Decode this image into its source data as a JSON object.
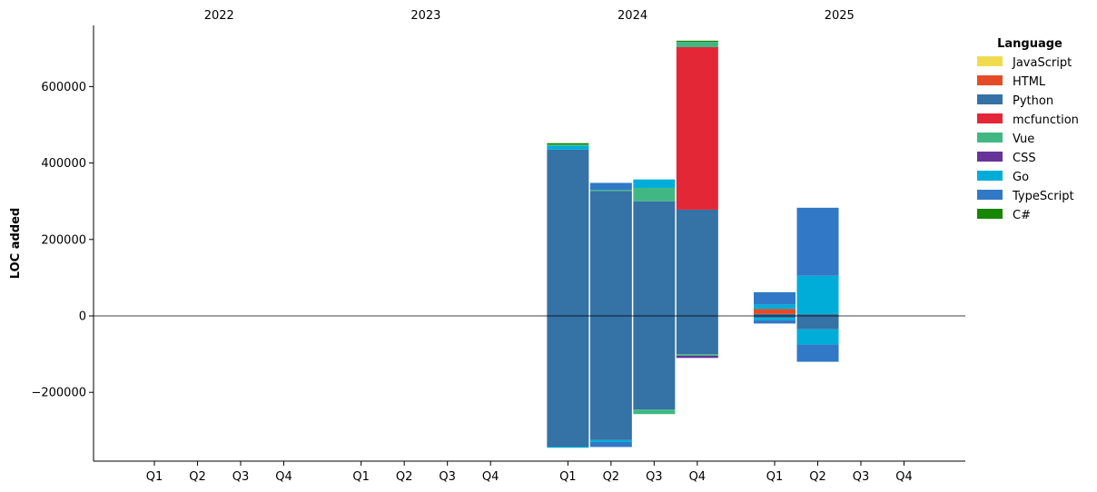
{
  "chart_data": {
    "type": "bar",
    "stacked": true,
    "ylabel": "LOC added",
    "ylim": [
      -380000,
      760000
    ],
    "yticks": [
      -200000,
      0,
      200000,
      400000,
      600000
    ],
    "ytick_labels": [
      "−200000",
      "0",
      "200000",
      "400000",
      "600000"
    ],
    "years": [
      "2022",
      "2023",
      "2024",
      "2025"
    ],
    "quarters": [
      "Q1",
      "Q2",
      "Q3",
      "Q4"
    ],
    "legend": {
      "title": "Language",
      "placement": "right",
      "entries": [
        "JavaScript",
        "HTML",
        "Python",
        "mcfunction",
        "Vue",
        "CSS",
        "Go",
        "TypeScript",
        "C#"
      ]
    },
    "colors": {
      "JavaScript": "#f0db4f",
      "HTML": "#e34c26",
      "Python": "#3572a5",
      "mcfunction": "#e42737",
      "Vue": "#41b883",
      "CSS": "#663399",
      "Go": "#00add8",
      "TypeScript": "#3178c6",
      "C#": "#178600"
    },
    "zero_line": true,
    "grid": false,
    "bars": [
      {
        "year": "2024",
        "quarter": "Q1",
        "positive": [
          {
            "language": "Python",
            "value": 435000
          },
          {
            "language": "Go",
            "value": 10000
          },
          {
            "language": "Vue",
            "value": 3000
          },
          {
            "language": "C#",
            "value": 4000
          }
        ],
        "negative": [
          {
            "language": "Python",
            "value": -342000
          },
          {
            "language": "Go",
            "value": -3000
          }
        ]
      },
      {
        "year": "2024",
        "quarter": "Q2",
        "positive": [
          {
            "language": "Python",
            "value": 327000
          },
          {
            "language": "Vue",
            "value": 3000
          },
          {
            "language": "TypeScript",
            "value": 18000
          }
        ],
        "negative": [
          {
            "language": "Python",
            "value": -325000
          },
          {
            "language": "Go",
            "value": -5000
          },
          {
            "language": "TypeScript",
            "value": -13000
          }
        ]
      },
      {
        "year": "2024",
        "quarter": "Q3",
        "positive": [
          {
            "language": "Python",
            "value": 300000
          },
          {
            "language": "Vue",
            "value": 35000
          },
          {
            "language": "Go",
            "value": 22000
          }
        ],
        "negative": [
          {
            "language": "Python",
            "value": -245000
          },
          {
            "language": "Vue",
            "value": -12000
          }
        ]
      },
      {
        "year": "2024",
        "quarter": "Q4",
        "positive": [
          {
            "language": "Python",
            "value": 278000
          },
          {
            "language": "mcfunction",
            "value": 425000
          },
          {
            "language": "Vue",
            "value": 14000
          },
          {
            "language": "C#",
            "value": 3000
          }
        ],
        "negative": [
          {
            "language": "Python",
            "value": -100000
          },
          {
            "language": "Vue",
            "value": -4000
          },
          {
            "language": "CSS",
            "value": -6000
          }
        ]
      },
      {
        "year": "2025",
        "quarter": "Q1",
        "positive": [
          {
            "language": "Python",
            "value": 5000
          },
          {
            "language": "HTML",
            "value": 13000
          },
          {
            "language": "Go",
            "value": 12000
          },
          {
            "language": "TypeScript",
            "value": 32000
          }
        ],
        "negative": [
          {
            "language": "Python",
            "value": -5000
          },
          {
            "language": "Go",
            "value": -6000
          },
          {
            "language": "TypeScript",
            "value": -9000
          }
        ]
      },
      {
        "year": "2025",
        "quarter": "Q2",
        "positive": [
          {
            "language": "Python",
            "value": 5000
          },
          {
            "language": "Go",
            "value": 100000
          },
          {
            "language": "TypeScript",
            "value": 178000
          }
        ],
        "negative": [
          {
            "language": "Python",
            "value": -35000
          },
          {
            "language": "Go",
            "value": -40000
          },
          {
            "language": "TypeScript",
            "value": -45000
          }
        ]
      }
    ]
  }
}
